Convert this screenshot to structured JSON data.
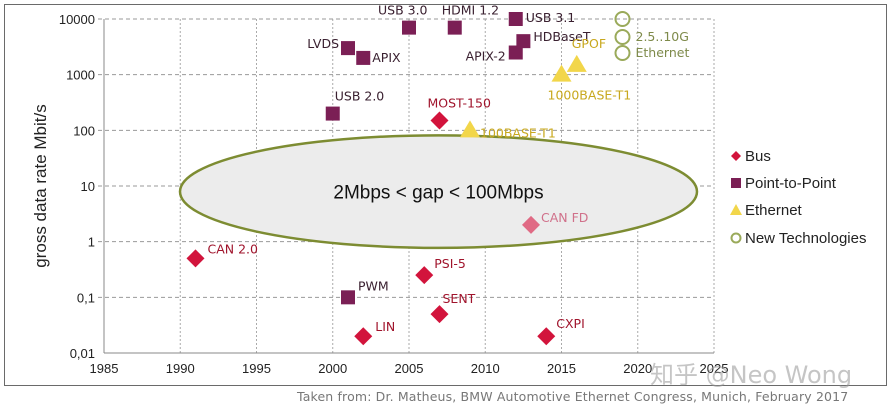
{
  "chart_data": {
    "type": "scatter",
    "title": "",
    "xlabel": "",
    "ylabel": "gross data rate Mbit/s",
    "xlim": [
      1985,
      2025
    ],
    "ylim": [
      0.01,
      10000
    ],
    "yscale": "log",
    "grid": true,
    "x_ticks": [
      "1985",
      "1990",
      "1995",
      "2000",
      "2005",
      "2010",
      "2015",
      "2020",
      "2025"
    ],
    "y_ticks": [
      "0,01",
      "0,1",
      "1",
      "10",
      "100",
      "1000",
      "10000"
    ],
    "legend_position": "right",
    "legend": [
      {
        "name": "Bus",
        "marker": "diamond",
        "color": "#d2143c"
      },
      {
        "name": "Point-to-Point",
        "marker": "square",
        "color": "#7b1f55"
      },
      {
        "name": "Ethernet",
        "marker": "triangle",
        "color": "#f2d64a"
      },
      {
        "name": "New Technologies",
        "marker": "circle-open",
        "color": "#9aaa5a"
      }
    ],
    "series": [
      {
        "name": "Bus",
        "points": [
          {
            "label": "CAN 2.0",
            "x": 1991,
            "y": 0.5
          },
          {
            "label": "LIN",
            "x": 2002,
            "y": 0.02
          },
          {
            "label": "PSI-5",
            "x": 2006,
            "y": 0.25
          },
          {
            "label": "SENT",
            "x": 2007,
            "y": 0.05
          },
          {
            "label": "MOST-150",
            "x": 2007,
            "y": 150
          },
          {
            "label": "CAN FD",
            "x": 2013,
            "y": 2,
            "color": "#e06a84"
          },
          {
            "label": "CXPI",
            "x": 2014,
            "y": 0.02
          }
        ]
      },
      {
        "name": "Point-to-Point",
        "points": [
          {
            "label": "USB 2.0",
            "x": 2000,
            "y": 200
          },
          {
            "label": "PWM",
            "x": 2001,
            "y": 0.1
          },
          {
            "label": "LVDS",
            "x": 2001,
            "y": 3000
          },
          {
            "label": "APIX",
            "x": 2002,
            "y": 2000
          },
          {
            "label": "USB 3.0",
            "x": 2005,
            "y": 7000
          },
          {
            "label": "HDMI 1.2",
            "x": 2008,
            "y": 7000
          },
          {
            "label": "USB 3.1",
            "x": 2012,
            "y": 10000
          },
          {
            "label": "APIX-2",
            "x": 2012,
            "y": 2500
          },
          {
            "label": "HDBaseT",
            "x": 2012.5,
            "y": 4000
          }
        ]
      },
      {
        "name": "Ethernet",
        "points": [
          {
            "label": "100BASE-T1",
            "x": 2009,
            "y": 100
          },
          {
            "label": "1000BASE-T1",
            "x": 2015,
            "y": 1000
          },
          {
            "label": "GPOF",
            "x": 2016,
            "y": 1500
          }
        ]
      },
      {
        "name": "New Technologies",
        "label": "2.5..10G Ethernet",
        "points": [
          {
            "x": 2019,
            "y": 10000
          },
          {
            "x": 2019,
            "y": 5000
          },
          {
            "x": 2019,
            "y": 2500
          }
        ]
      }
    ],
    "annotations": [
      {
        "text": "2Mbps < gap < 100Mbps",
        "shape": "ellipse",
        "x_range": [
          1985,
          2018
        ],
        "y_range": [
          2,
          100
        ]
      }
    ]
  },
  "source": "Taken from: Dr. Matheus, BMW Automotive Ethernet Congress, Munich, February 2017",
  "watermark": "知乎 @Neo Wong"
}
